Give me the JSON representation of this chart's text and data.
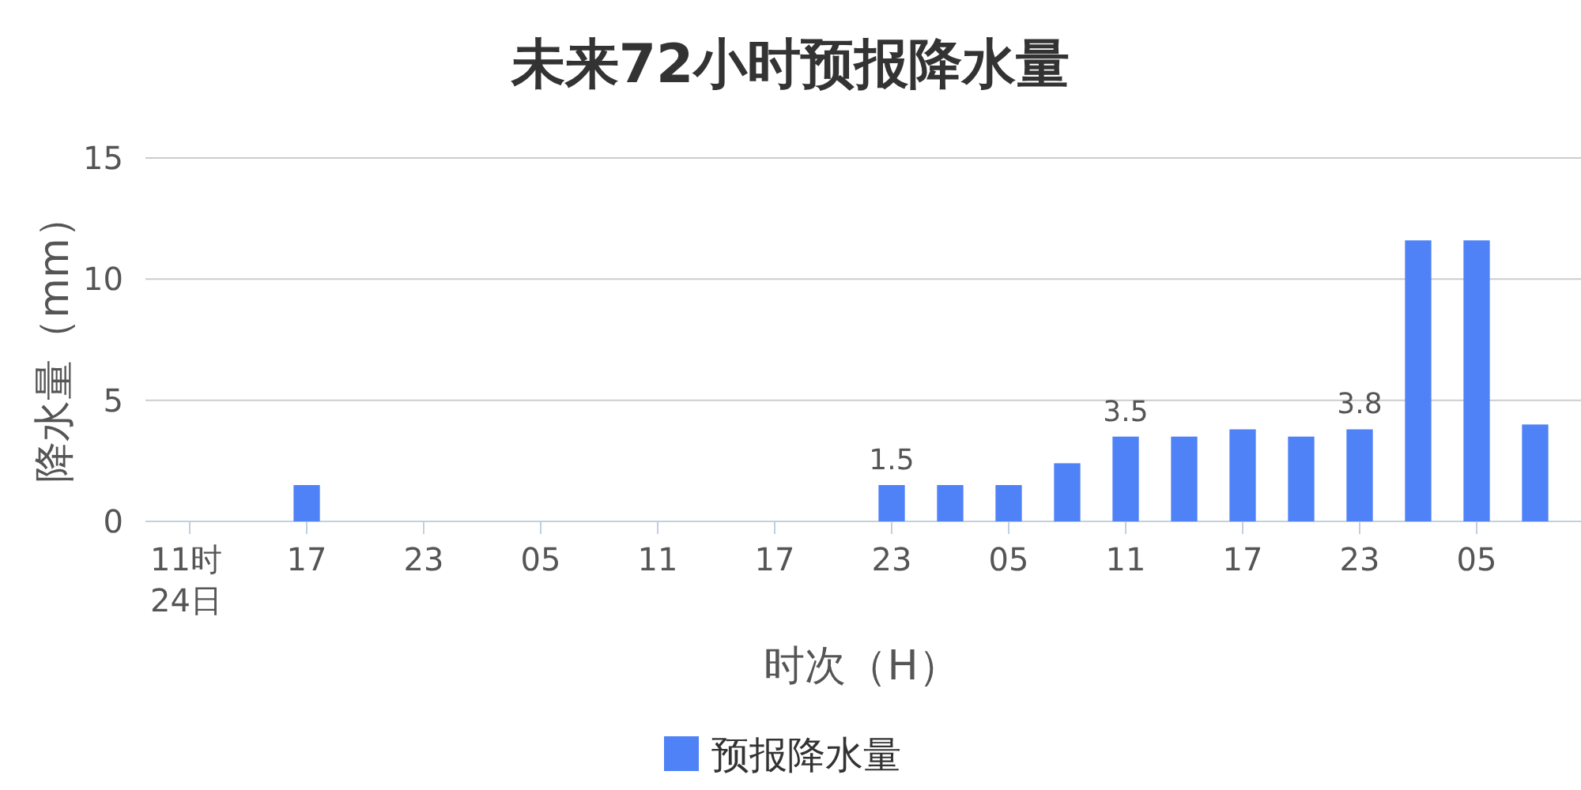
{
  "chart_data": {
    "type": "bar",
    "title": "未来72小时预报降水量",
    "xlabel": "时次（H）",
    "ylabel": "降水量（mm）",
    "categories": [
      "11时\n24日",
      null,
      "17",
      null,
      "23",
      null,
      "05",
      null,
      "11",
      null,
      "17",
      null,
      "23",
      null,
      "05",
      null,
      "11",
      null,
      "17",
      null,
      "23",
      null,
      "05",
      null
    ],
    "series": [
      {
        "name": "预报降水量",
        "color": "#4f81f7",
        "values": [
          0,
          0,
          1.5,
          0,
          0,
          0,
          0,
          0,
          0,
          0,
          0,
          0,
          1.5,
          1.5,
          1.5,
          2.4,
          3.5,
          3.5,
          3.8,
          3.5,
          3.8,
          11.6,
          11.6,
          4.0
        ],
        "value_labels": [
          null,
          null,
          null,
          null,
          null,
          null,
          null,
          null,
          null,
          null,
          null,
          null,
          "1.5",
          null,
          null,
          null,
          "3.5",
          null,
          null,
          null,
          "3.8",
          null,
          null,
          null
        ]
      }
    ],
    "ylim": [
      0,
      15
    ],
    "yticks": [
      0,
      5,
      10,
      15
    ],
    "grid": "y",
    "legend": "bottom"
  }
}
